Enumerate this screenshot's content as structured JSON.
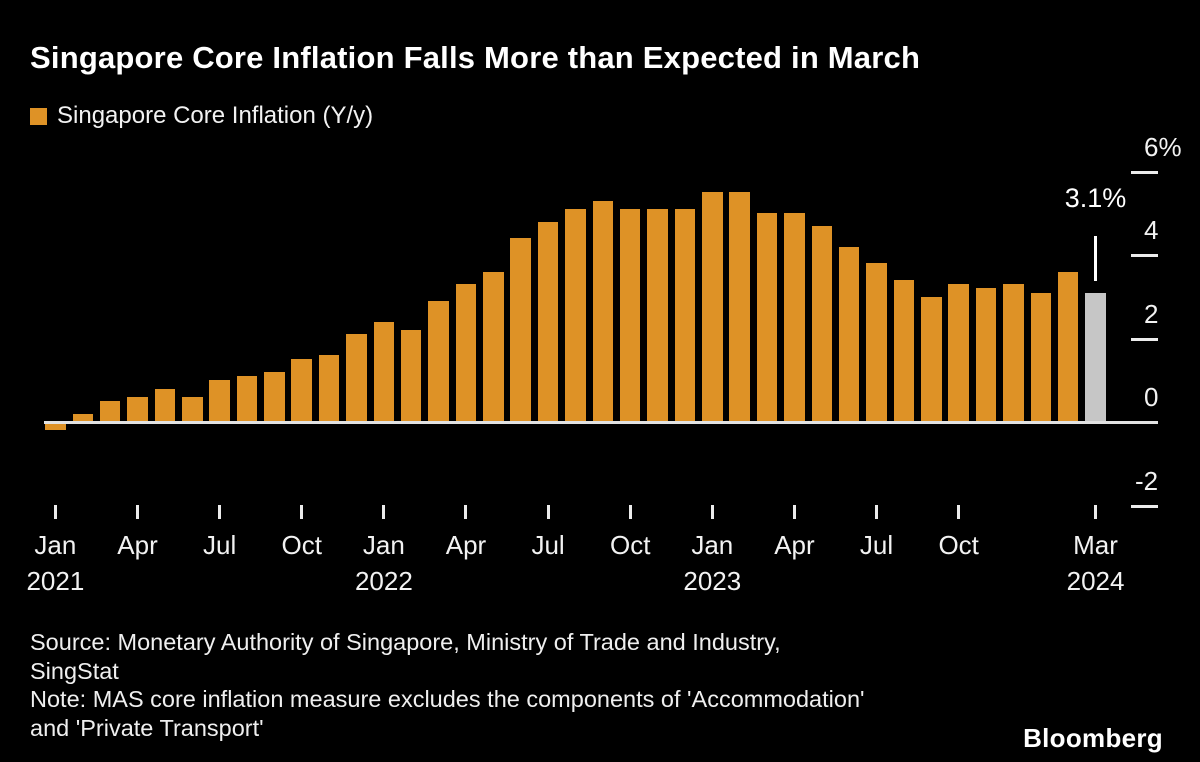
{
  "title": "Singapore Core Inflation Falls More than Expected in March",
  "legend": {
    "label": "Singapore Core Inflation (Y/y)",
    "swatch_color": "#DE9226"
  },
  "annotation": {
    "label": "3.1%"
  },
  "footer": {
    "source_line1": "Source: Monetary Authority of Singapore, Ministry of Trade and Industry,",
    "source_line2": "SingStat",
    "note_line1": "Note: MAS core inflation measure excludes the components of 'Accommodation'",
    "note_line2": "and 'Private Transport'"
  },
  "logo": "Bloomberg",
  "colors": {
    "background": "#000000",
    "bar": "#DE9226",
    "highlight_bar": "#C6C6C6",
    "text": "#FFFFFF",
    "axis_line": "#E2E2E2"
  },
  "chart_data": {
    "type": "bar",
    "title": "Singapore Core Inflation Falls More than Expected in March",
    "series_name": "Singapore Core Inflation (Y/y)",
    "unit": "%",
    "x": [
      "Jan 2021",
      "Feb 2021",
      "Mar 2021",
      "Apr 2021",
      "May 2021",
      "Jun 2021",
      "Jul 2021",
      "Aug 2021",
      "Sep 2021",
      "Oct 2021",
      "Nov 2021",
      "Dec 2021",
      "Jan 2022",
      "Feb 2022",
      "Mar 2022",
      "Apr 2022",
      "May 2022",
      "Jun 2022",
      "Jul 2022",
      "Aug 2022",
      "Sep 2022",
      "Oct 2022",
      "Nov 2022",
      "Dec 2022",
      "Jan 2023",
      "Feb 2023",
      "Mar 2023",
      "Apr 2023",
      "May 2023",
      "Jun 2023",
      "Jul 2023",
      "Aug 2023",
      "Sep 2023",
      "Oct 2023",
      "Nov 2023",
      "Dec 2023",
      "Jan 2024",
      "Feb 2024",
      "Mar 2024"
    ],
    "values": [
      -0.2,
      0.2,
      0.5,
      0.6,
      0.8,
      0.6,
      1.0,
      1.1,
      1.2,
      1.5,
      1.6,
      2.1,
      2.4,
      2.2,
      2.9,
      3.3,
      3.6,
      4.4,
      4.8,
      5.1,
      5.3,
      5.1,
      5.1,
      5.1,
      5.5,
      5.5,
      5.0,
      5.0,
      4.7,
      4.2,
      3.8,
      3.4,
      3.0,
      3.3,
      3.2,
      3.3,
      3.1,
      3.6,
      3.1
    ],
    "highlight_index": 38,
    "annotation": {
      "index": 38,
      "text": "3.1%"
    },
    "ylim": [
      -2.4,
      6.2
    ],
    "grid": false,
    "legend_position": "top-left",
    "y_axis_side": "right",
    "yticks": [
      {
        "label": "6%",
        "value": 6
      },
      {
        "label": "4",
        "value": 4
      },
      {
        "label": "2",
        "value": 2
      },
      {
        "label": "0",
        "value": 0
      },
      {
        "label": "-2",
        "value": -2
      }
    ],
    "xticks": [
      {
        "bar_index": 0,
        "label": "Jan",
        "year": "2021"
      },
      {
        "bar_index": 3,
        "label": "Apr"
      },
      {
        "bar_index": 6,
        "label": "Jul"
      },
      {
        "bar_index": 9,
        "label": "Oct"
      },
      {
        "bar_index": 12,
        "label": "Jan",
        "year": "2022"
      },
      {
        "bar_index": 15,
        "label": "Apr"
      },
      {
        "bar_index": 18,
        "label": "Jul"
      },
      {
        "bar_index": 21,
        "label": "Oct"
      },
      {
        "bar_index": 24,
        "label": "Jan",
        "year": "2023"
      },
      {
        "bar_index": 27,
        "label": "Apr"
      },
      {
        "bar_index": 30,
        "label": "Jul"
      },
      {
        "bar_index": 33,
        "label": "Oct"
      },
      {
        "bar_index": 38,
        "label": "Mar",
        "year": "2024"
      }
    ]
  }
}
